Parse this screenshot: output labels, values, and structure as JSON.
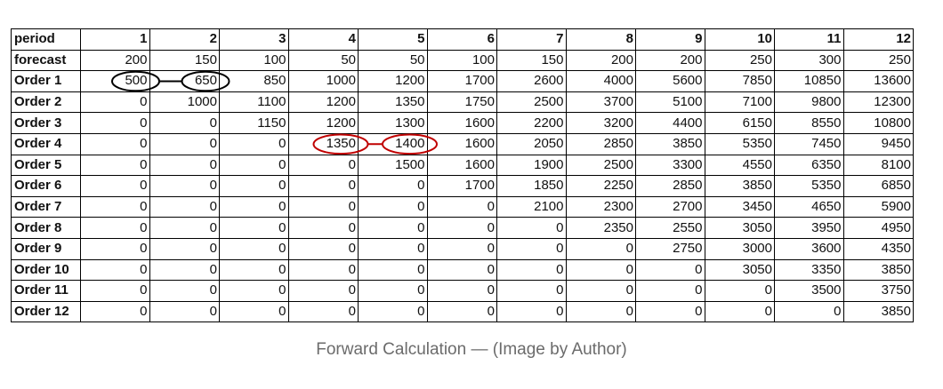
{
  "table": {
    "header": [
      "period",
      "1",
      "2",
      "3",
      "4",
      "5",
      "6",
      "7",
      "8",
      "9",
      "10",
      "11",
      "12"
    ],
    "rows": [
      [
        "forecast",
        "200",
        "150",
        "100",
        "50",
        "50",
        "100",
        "150",
        "200",
        "200",
        "250",
        "300",
        "250"
      ],
      [
        "Order 1",
        "500",
        "650",
        "850",
        "1000",
        "1200",
        "1700",
        "2600",
        "4000",
        "5600",
        "7850",
        "10850",
        "13600"
      ],
      [
        "Order 2",
        "0",
        "1000",
        "1100",
        "1200",
        "1350",
        "1750",
        "2500",
        "3700",
        "5100",
        "7100",
        "9800",
        "12300"
      ],
      [
        "Order 3",
        "0",
        "0",
        "1150",
        "1200",
        "1300",
        "1600",
        "2200",
        "3200",
        "4400",
        "6150",
        "8550",
        "10800"
      ],
      [
        "Order 4",
        "0",
        "0",
        "0",
        "1350",
        "1400",
        "1600",
        "2050",
        "2850",
        "3850",
        "5350",
        "7450",
        "9450"
      ],
      [
        "Order 5",
        "0",
        "0",
        "0",
        "0",
        "1500",
        "1600",
        "1900",
        "2500",
        "3300",
        "4550",
        "6350",
        "8100"
      ],
      [
        "Order 6",
        "0",
        "0",
        "0",
        "0",
        "0",
        "1700",
        "1850",
        "2250",
        "2850",
        "3850",
        "5350",
        "6850"
      ],
      [
        "Order 7",
        "0",
        "0",
        "0",
        "0",
        "0",
        "0",
        "2100",
        "2300",
        "2700",
        "3450",
        "4650",
        "5900"
      ],
      [
        "Order 8",
        "0",
        "0",
        "0",
        "0",
        "0",
        "0",
        "0",
        "2350",
        "2550",
        "3050",
        "3950",
        "4950"
      ],
      [
        "Order 9",
        "0",
        "0",
        "0",
        "0",
        "0",
        "0",
        "0",
        "0",
        "2750",
        "3000",
        "3600",
        "4350"
      ],
      [
        "Order 10",
        "0",
        "0",
        "0",
        "0",
        "0",
        "0",
        "0",
        "0",
        "0",
        "3050",
        "3350",
        "3850"
      ],
      [
        "Order 11",
        "0",
        "0",
        "0",
        "0",
        "0",
        "0",
        "0",
        "0",
        "0",
        "0",
        "3500",
        "3750"
      ],
      [
        "Order 12",
        "0",
        "0",
        "0",
        "0",
        "0",
        "0",
        "0",
        "0",
        "0",
        "0",
        "0",
        "3850"
      ]
    ]
  },
  "annotations": [
    {
      "row": "Order 1",
      "periods": [
        "1",
        "2"
      ],
      "color": "#000000"
    },
    {
      "row": "Order 4",
      "periods": [
        "4",
        "5"
      ],
      "color": "#c00000"
    }
  ],
  "caption": "Forward Calculation — (Image by Author)"
}
